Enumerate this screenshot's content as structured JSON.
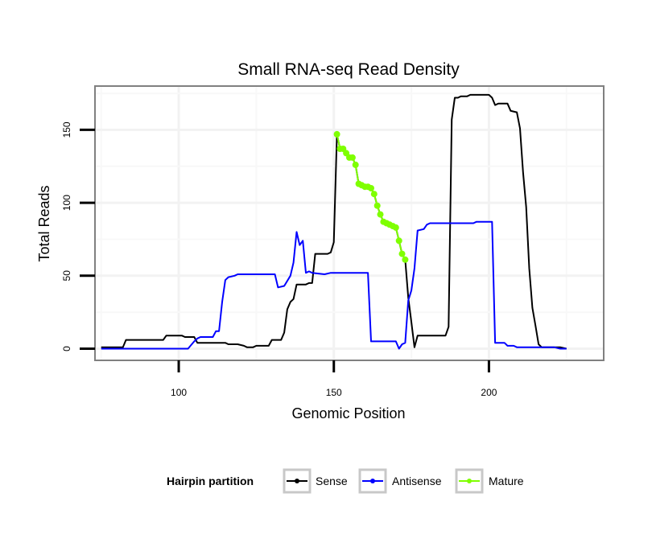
{
  "chart_data": {
    "type": "line",
    "title": "Small RNA-seq Read Density",
    "xlabel": "Genomic Position",
    "ylabel": "Total Reads",
    "xlim": [
      73,
      237
    ],
    "ylim": [
      -8,
      180
    ],
    "x_ticks": [
      100,
      150,
      200
    ],
    "y_ticks": [
      0,
      50,
      100,
      150
    ],
    "grid": true,
    "legend": {
      "title": "Hairpin partition",
      "position": "bottom",
      "entries": [
        {
          "name": "Sense",
          "color": "#000000"
        },
        {
          "name": "Antisense",
          "color": "#0000ff"
        },
        {
          "name": "Mature",
          "color": "#7fff00"
        }
      ]
    },
    "series": [
      {
        "name": "Sense",
        "color": "#000000",
        "markers": false,
        "points": [
          [
            75,
            1
          ],
          [
            82,
            1
          ],
          [
            83,
            6
          ],
          [
            95,
            6
          ],
          [
            96,
            9
          ],
          [
            101,
            9
          ],
          [
            102,
            8
          ],
          [
            105,
            8
          ],
          [
            106,
            4
          ],
          [
            115,
            4
          ],
          [
            116,
            3
          ],
          [
            119,
            3
          ],
          [
            121,
            2
          ],
          [
            122,
            1
          ],
          [
            124,
            1
          ],
          [
            125,
            2
          ],
          [
            129,
            2
          ],
          [
            130,
            6
          ],
          [
            133,
            6
          ],
          [
            134,
            11
          ],
          [
            135,
            27
          ],
          [
            136,
            32
          ],
          [
            137,
            34
          ],
          [
            138,
            44
          ],
          [
            141,
            44
          ],
          [
            142,
            45
          ],
          [
            143,
            45
          ],
          [
            144,
            65
          ],
          [
            148,
            65
          ],
          [
            149,
            66
          ],
          [
            150,
            73
          ],
          [
            151,
            147
          ],
          [
            152,
            137
          ],
          [
            153,
            137
          ],
          [
            154,
            134
          ],
          [
            155,
            131
          ],
          [
            156,
            131
          ],
          [
            157,
            126
          ],
          [
            158,
            113
          ],
          [
            159,
            112
          ],
          [
            160,
            111
          ],
          [
            161,
            111
          ],
          [
            162,
            110
          ],
          [
            163,
            106
          ],
          [
            164,
            98
          ],
          [
            165,
            92
          ],
          [
            166,
            87
          ],
          [
            167,
            86
          ],
          [
            168,
            85
          ],
          [
            169,
            84
          ],
          [
            170,
            83
          ],
          [
            171,
            74
          ],
          [
            172,
            65
          ],
          [
            173,
            61
          ],
          [
            174,
            35
          ],
          [
            175,
            18
          ],
          [
            176,
            1
          ],
          [
            177,
            9
          ],
          [
            186,
            9
          ],
          [
            187,
            15
          ],
          [
            188,
            157
          ],
          [
            189,
            172
          ],
          [
            190,
            172
          ],
          [
            191,
            173
          ],
          [
            193,
            173
          ],
          [
            194,
            174
          ],
          [
            200,
            174
          ],
          [
            201,
            172
          ],
          [
            202,
            167
          ],
          [
            203,
            168
          ],
          [
            206,
            168
          ],
          [
            207,
            163
          ],
          [
            209,
            162
          ],
          [
            210,
            151
          ],
          [
            211,
            121
          ],
          [
            212,
            97
          ],
          [
            213,
            55
          ],
          [
            214,
            28
          ],
          [
            215,
            16
          ],
          [
            216,
            3
          ],
          [
            217,
            1
          ],
          [
            223,
            1
          ],
          [
            225,
            0
          ]
        ]
      },
      {
        "name": "Antisense",
        "color": "#0000ff",
        "markers": false,
        "points": [
          [
            75,
            0
          ],
          [
            103,
            0
          ],
          [
            105,
            5
          ],
          [
            106,
            7
          ],
          [
            107,
            8
          ],
          [
            111,
            8
          ],
          [
            112,
            12
          ],
          [
            113,
            12
          ],
          [
            114,
            32
          ],
          [
            115,
            47
          ],
          [
            116,
            49
          ],
          [
            118,
            50
          ],
          [
            119,
            51
          ],
          [
            131,
            51
          ],
          [
            132,
            42
          ],
          [
            134,
            43
          ],
          [
            136,
            50
          ],
          [
            137,
            59
          ],
          [
            138,
            80
          ],
          [
            139,
            71
          ],
          [
            140,
            74
          ],
          [
            141,
            52
          ],
          [
            142,
            53
          ],
          [
            143,
            52
          ],
          [
            147,
            51
          ],
          [
            149,
            52
          ],
          [
            161,
            52
          ],
          [
            162,
            5
          ],
          [
            170,
            5
          ],
          [
            171,
            0
          ],
          [
            172,
            3
          ],
          [
            173,
            4
          ],
          [
            174,
            33
          ],
          [
            175,
            40
          ],
          [
            176,
            55
          ],
          [
            177,
            81
          ],
          [
            179,
            82
          ],
          [
            180,
            85
          ],
          [
            181,
            86
          ],
          [
            195,
            86
          ],
          [
            196,
            87
          ],
          [
            201,
            87
          ],
          [
            202,
            4
          ],
          [
            205,
            4
          ],
          [
            206,
            2
          ],
          [
            208,
            2
          ],
          [
            209,
            1
          ],
          [
            221,
            1
          ],
          [
            223,
            0
          ],
          [
            225,
            0
          ]
        ]
      },
      {
        "name": "Mature",
        "color": "#7fff00",
        "markers": true,
        "points": [
          [
            151,
            147
          ],
          [
            152,
            137
          ],
          [
            153,
            137
          ],
          [
            154,
            134
          ],
          [
            155,
            131
          ],
          [
            156,
            131
          ],
          [
            157,
            126
          ],
          [
            158,
            113
          ],
          [
            159,
            112
          ],
          [
            160,
            111
          ],
          [
            161,
            111
          ],
          [
            162,
            110
          ],
          [
            163,
            106
          ],
          [
            164,
            98
          ],
          [
            165,
            92
          ],
          [
            166,
            87
          ],
          [
            167,
            86
          ],
          [
            168,
            85
          ],
          [
            169,
            84
          ],
          [
            170,
            83
          ],
          [
            171,
            74
          ],
          [
            172,
            65
          ],
          [
            173,
            61
          ]
        ]
      }
    ]
  }
}
